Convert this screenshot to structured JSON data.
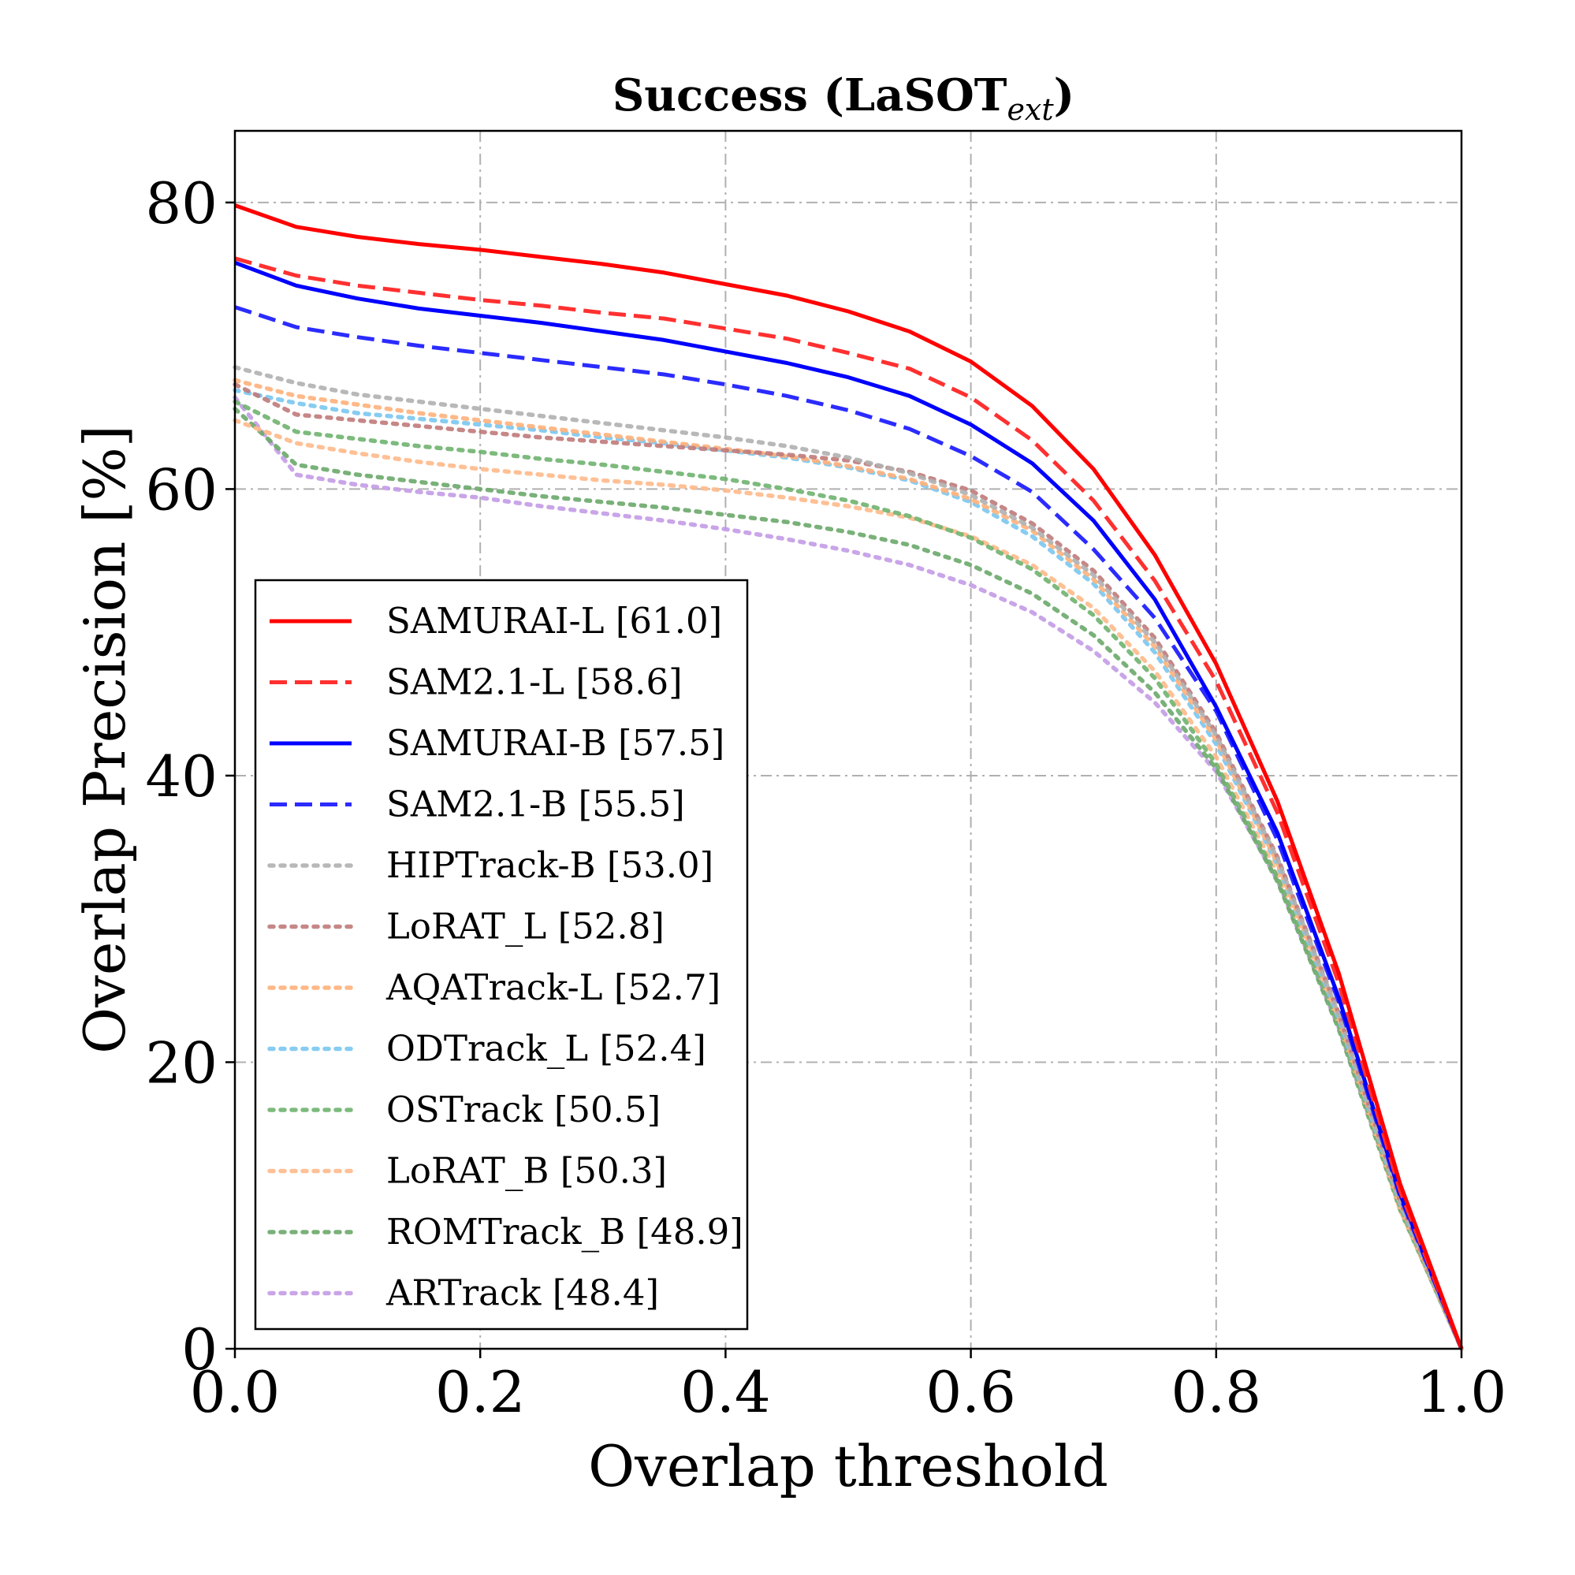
{
  "chart_data": {
    "type": "line",
    "title": "Success (LaSOT",
    "title_subscript": "ext",
    "title_close": ")",
    "xlabel": "Overlap threshold",
    "ylabel": "Overlap Precision [%]",
    "xlim": [
      0,
      1
    ],
    "ylim": [
      0,
      85
    ],
    "xticks": [
      0.0,
      0.2,
      0.4,
      0.6,
      0.8,
      1.0
    ],
    "xtick_labels": [
      "0.0",
      "0.2",
      "0.4",
      "0.6",
      "0.8",
      "1.0"
    ],
    "yticks": [
      0,
      20,
      40,
      60,
      80
    ],
    "ytick_labels": [
      "0",
      "20",
      "40",
      "60",
      "80"
    ],
    "grid": true,
    "legend_position": "lower-left",
    "x": [
      0.0,
      0.05,
      0.1,
      0.15,
      0.2,
      0.25,
      0.3,
      0.35,
      0.4,
      0.45,
      0.5,
      0.55,
      0.6,
      0.65,
      0.7,
      0.75,
      0.8,
      0.85,
      0.9,
      0.95,
      1.0
    ],
    "series": [
      {
        "name": "SAMURAI-L [61.0]",
        "color": "#ff0000",
        "style": "solid",
        "alpha": 1.0,
        "values": [
          79.8,
          78.3,
          77.6,
          77.1,
          76.7,
          76.2,
          75.7,
          75.1,
          74.3,
          73.5,
          72.4,
          71.0,
          68.9,
          65.8,
          61.4,
          55.4,
          47.8,
          38.2,
          26.2,
          11.5,
          0.0
        ]
      },
      {
        "name": "SAM2.1-L [58.6]",
        "color": "#ff3030",
        "style": "dashed",
        "alpha": 1.0,
        "values": [
          76.1,
          74.9,
          74.2,
          73.7,
          73.2,
          72.8,
          72.3,
          71.9,
          71.2,
          70.5,
          69.5,
          68.4,
          66.4,
          63.4,
          59.2,
          53.6,
          46.6,
          37.4,
          25.5,
          11.0,
          0.0
        ]
      },
      {
        "name": "SAMURAI-B [57.5]",
        "color": "#0000ff",
        "style": "solid",
        "alpha": 1.0,
        "values": [
          75.8,
          74.2,
          73.3,
          72.6,
          72.1,
          71.6,
          71.0,
          70.4,
          69.6,
          68.8,
          67.8,
          66.5,
          64.5,
          61.8,
          57.8,
          52.3,
          44.8,
          36.0,
          24.5,
          10.8,
          0.0
        ]
      },
      {
        "name": "SAM2.1-B [55.5]",
        "color": "#2b2bff",
        "style": "dashed",
        "alpha": 1.0,
        "values": [
          72.7,
          71.3,
          70.6,
          70.0,
          69.5,
          69.0,
          68.5,
          68.0,
          67.3,
          66.5,
          65.5,
          64.2,
          62.3,
          59.8,
          55.8,
          51.0,
          44.5,
          35.5,
          24.2,
          10.6,
          0.0
        ]
      },
      {
        "name": "HIPTrack-B [53.0]",
        "color": "#b0b0b0",
        "style": "dotted",
        "alpha": 0.9,
        "values": [
          68.5,
          67.4,
          66.6,
          66.1,
          65.6,
          65.1,
          64.6,
          64.1,
          63.6,
          63.0,
          62.2,
          61.1,
          59.6,
          57.3,
          54.0,
          49.3,
          42.8,
          34.2,
          23.3,
          10.2,
          0.0
        ]
      },
      {
        "name": "LoRAT_L [52.8]",
        "color": "#c07a7a",
        "style": "dotted",
        "alpha": 0.9,
        "values": [
          67.3,
          65.2,
          64.8,
          64.4,
          64.0,
          63.6,
          63.3,
          63.0,
          62.7,
          62.4,
          62.0,
          61.2,
          59.9,
          57.6,
          54.3,
          49.6,
          43.0,
          34.3,
          23.4,
          10.3,
          0.0
        ]
      },
      {
        "name": "AQATrack-L [52.7]",
        "color": "#ffb07a",
        "style": "dotted",
        "alpha": 0.9,
        "values": [
          67.6,
          66.5,
          65.9,
          65.3,
          64.8,
          64.3,
          63.8,
          63.3,
          62.8,
          62.3,
          61.6,
          60.7,
          59.3,
          57.1,
          53.7,
          49.0,
          42.5,
          33.9,
          23.1,
          10.1,
          0.0
        ]
      },
      {
        "name": "ODTrack_L [52.4]",
        "color": "#7ac7ef",
        "style": "dotted",
        "alpha": 0.9,
        "values": [
          66.9,
          66.0,
          65.3,
          64.9,
          64.5,
          64.1,
          63.6,
          63.2,
          62.7,
          62.2,
          61.5,
          60.6,
          59.1,
          56.7,
          53.4,
          48.6,
          42.2,
          33.8,
          23.0,
          10.1,
          0.0
        ]
      },
      {
        "name": "OSTrack [50.5]",
        "color": "#6fb36f",
        "style": "dotted",
        "alpha": 0.9,
        "values": [
          66.1,
          64.0,
          63.5,
          63.0,
          62.6,
          62.1,
          61.7,
          61.2,
          60.7,
          60.0,
          59.2,
          58.1,
          56.6,
          54.4,
          51.2,
          46.8,
          40.8,
          32.9,
          22.6,
          9.9,
          0.0
        ]
      },
      {
        "name": "LoRAT_B [50.3]",
        "color": "#ffb98a",
        "style": "dotted",
        "alpha": 0.9,
        "values": [
          64.8,
          63.2,
          62.5,
          61.9,
          61.4,
          61.0,
          60.6,
          60.3,
          59.9,
          59.4,
          58.8,
          58.0,
          56.7,
          54.7,
          51.7,
          47.3,
          41.3,
          33.2,
          22.7,
          9.7,
          0.0
        ]
      },
      {
        "name": "ROMTrack_B [48.9]",
        "color": "#6aa86a",
        "style": "dotted",
        "alpha": 0.9,
        "values": [
          65.6,
          61.7,
          61.0,
          60.5,
          60.0,
          59.5,
          59.1,
          58.7,
          58.2,
          57.7,
          57.0,
          56.1,
          54.7,
          52.7,
          49.8,
          45.8,
          40.5,
          32.6,
          22.3,
          9.7,
          0.0
        ]
      },
      {
        "name": "ARTrack [48.4]",
        "color": "#c39be6",
        "style": "dotted",
        "alpha": 0.9,
        "values": [
          66.4,
          61.0,
          60.3,
          59.8,
          59.4,
          58.8,
          58.3,
          57.8,
          57.2,
          56.5,
          55.7,
          54.7,
          53.3,
          51.4,
          48.7,
          45.1,
          40.3,
          32.7,
          22.4,
          9.8,
          0.0
        ]
      }
    ]
  }
}
